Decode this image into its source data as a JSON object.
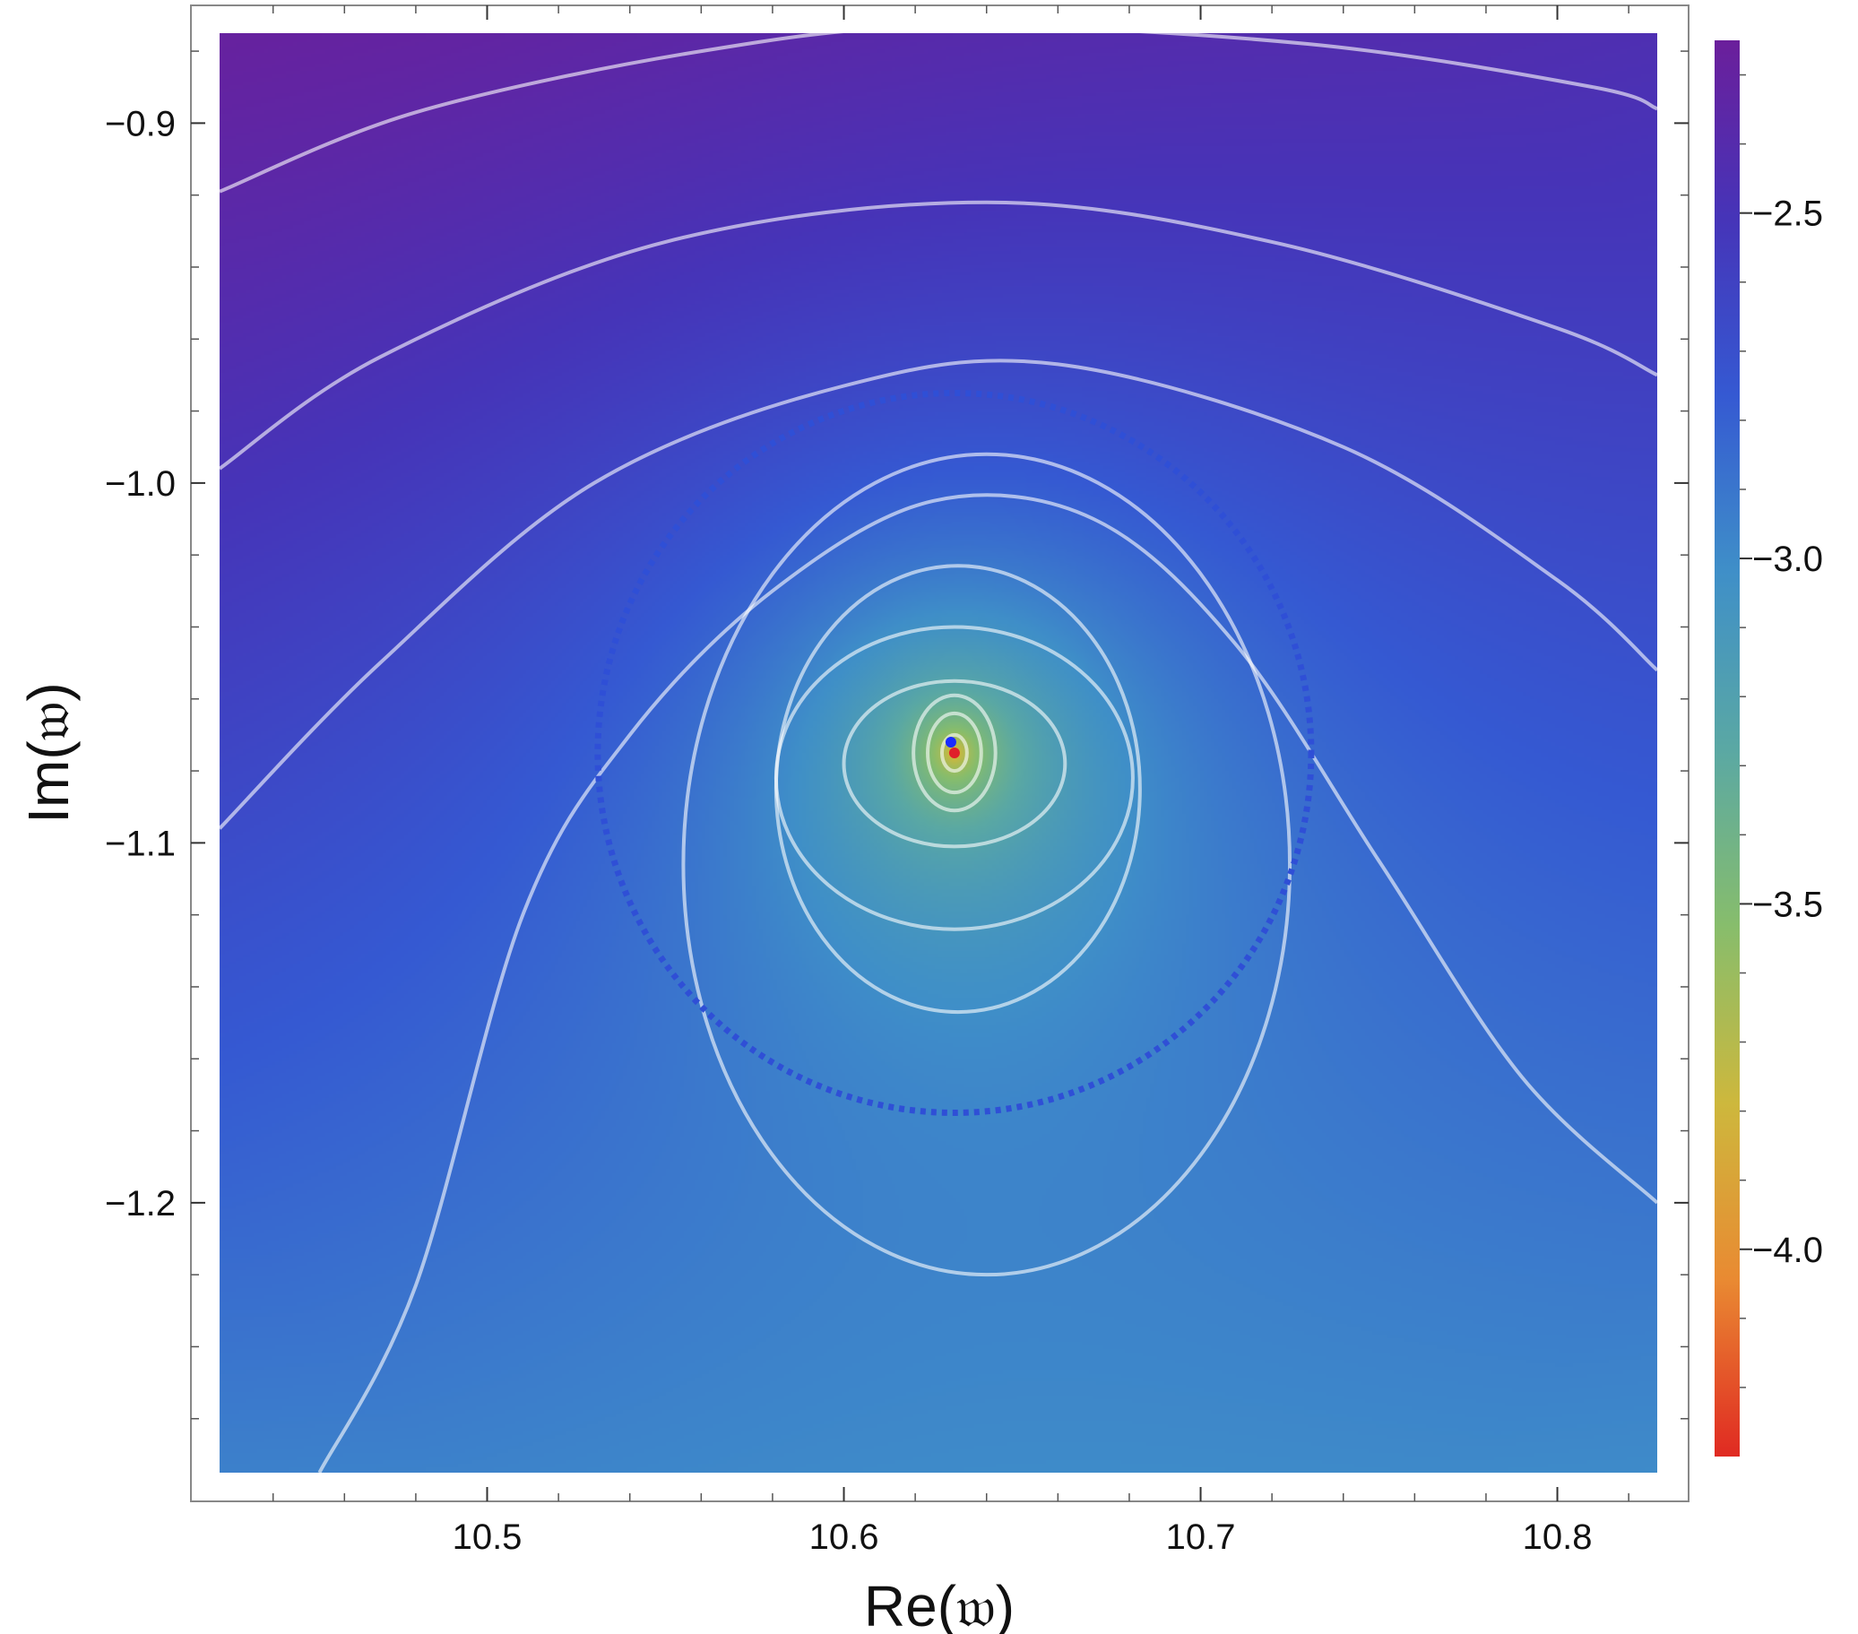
{
  "chart_data": {
    "type": "heatmap",
    "title": "",
    "xlabel": "Re(𝔴)",
    "ylabel": "Im(𝔴)",
    "xlim": [
      10.425,
      10.828
    ],
    "ylim": [
      -1.275,
      -0.875
    ],
    "xticks": [
      {
        "value": 10.5,
        "label": "10.5"
      },
      {
        "value": 10.6,
        "label": "10.6"
      },
      {
        "value": 10.7,
        "label": "10.7"
      },
      {
        "value": 10.8,
        "label": "10.8"
      }
    ],
    "yticks": [
      {
        "value": -0.9,
        "label": "−0.9"
      },
      {
        "value": -1.0,
        "label": "−1.0"
      },
      {
        "value": -1.1,
        "label": "−1.1"
      },
      {
        "value": -1.2,
        "label": "−1.2"
      }
    ],
    "colorbar": {
      "range": [
        -4.3,
        -2.25
      ],
      "ticks": [
        {
          "value": -2.5,
          "label": "−2.5"
        },
        {
          "value": -3.0,
          "label": "−3.0"
        },
        {
          "value": -3.5,
          "label": "−3.5"
        },
        {
          "value": -4.0,
          "label": "−4.0"
        }
      ],
      "colors": [
        "#e02a22",
        "#e98a32",
        "#cdb83d",
        "#87bd6c",
        "#5aa8a4",
        "#3f8fc8",
        "#3559d2",
        "#4634b8",
        "#6b1f9b"
      ]
    },
    "field": {
      "pole_center": [
        10.631,
        -1.075
      ],
      "min_value": -4.28,
      "corner_values": {
        "top_left": -2.28,
        "top_right": -2.45,
        "bottom_left": -2.95,
        "bottom_right": -3.0
      }
    },
    "contours": {
      "color": "#ffffff",
      "nested_levels": [
        {
          "cx": 10.631,
          "cy": -1.075,
          "rx": 0.0035,
          "ry": 0.005
        },
        {
          "cx": 10.631,
          "cy": -1.075,
          "rx": 0.0075,
          "ry": 0.011
        },
        {
          "cx": 10.631,
          "cy": -1.075,
          "rx": 0.0115,
          "ry": 0.016
        },
        {
          "cx": 10.631,
          "cy": -1.078,
          "rx": 0.031,
          "ry": 0.023
        },
        {
          "cx": 10.631,
          "cy": -1.082,
          "rx": 0.05,
          "ry": 0.042
        },
        {
          "cx": 10.632,
          "cy": -1.085,
          "rx": 0.051,
          "ry": 0.062
        },
        {
          "cx": 10.64,
          "cy": -1.106,
          "rx": 0.085,
          "ry": 0.114
        }
      ],
      "open_curves": [
        [
          [
            10.425,
            -0.919
          ],
          [
            10.48,
            -0.897
          ],
          [
            10.56,
            -0.88
          ],
          [
            10.63,
            -0.873
          ],
          [
            10.73,
            -0.878
          ],
          [
            10.81,
            -0.89
          ],
          [
            10.828,
            -0.896
          ]
        ],
        [
          [
            10.425,
            -0.996
          ],
          [
            10.47,
            -0.965
          ],
          [
            10.55,
            -0.933
          ],
          [
            10.64,
            -0.922
          ],
          [
            10.72,
            -0.933
          ],
          [
            10.8,
            -0.957
          ],
          [
            10.828,
            -0.97
          ]
        ],
        [
          [
            10.425,
            -1.096
          ],
          [
            10.47,
            -1.05
          ],
          [
            10.53,
            -1.0
          ],
          [
            10.6,
            -0.973
          ],
          [
            10.66,
            -0.967
          ],
          [
            10.74,
            -0.99
          ],
          [
            10.8,
            -1.027
          ],
          [
            10.828,
            -1.052
          ]
        ],
        [
          [
            10.453,
            -1.275
          ],
          [
            10.48,
            -1.223
          ],
          [
            10.51,
            -1.12
          ],
          [
            10.54,
            -1.07
          ],
          [
            10.58,
            -1.03
          ],
          [
            10.625,
            -1.005
          ],
          [
            10.67,
            -1.01
          ],
          [
            10.71,
            -1.045
          ],
          [
            10.75,
            -1.105
          ],
          [
            10.79,
            -1.165
          ],
          [
            10.828,
            -1.2
          ]
        ]
      ]
    },
    "dotted_circle": {
      "cx": 10.631,
      "cy": -1.075,
      "r": 0.1,
      "color": "#2f4fd6"
    },
    "markers": [
      {
        "x": 10.63,
        "y": -1.072,
        "color": "#1a2bff"
      },
      {
        "x": 10.631,
        "y": -1.075,
        "color": "#e0202a"
      }
    ],
    "legend": "none",
    "grid": false
  }
}
